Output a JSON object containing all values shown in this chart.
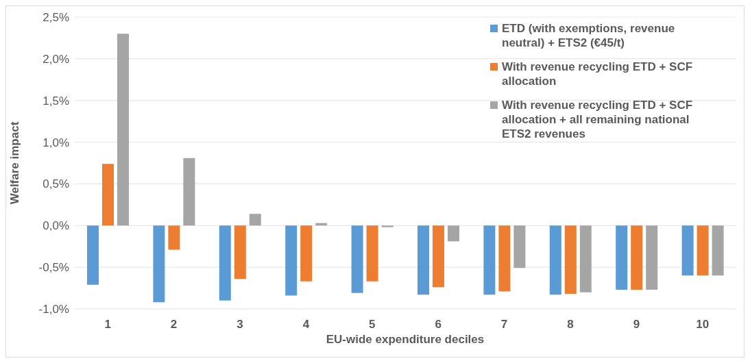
{
  "chart_data": {
    "type": "bar",
    "xlabel": "EU-wide expenditure deciles",
    "ylabel": "Welfare impact",
    "categories": [
      "1",
      "2",
      "3",
      "4",
      "5",
      "6",
      "7",
      "8",
      "9",
      "10"
    ],
    "series": [
      {
        "name": "ETD (with exemptions, revenue neutral) + ETS2 (€45/t)",
        "color": "#5b9bd5",
        "values": [
          -0.71,
          -0.92,
          -0.9,
          -0.84,
          -0.81,
          -0.83,
          -0.83,
          -0.83,
          -0.77,
          -0.6
        ]
      },
      {
        "name": "With revenue recycling ETD + SCF allocation",
        "color": "#ed7d31",
        "values": [
          0.74,
          -0.29,
          -0.64,
          -0.67,
          -0.67,
          -0.74,
          -0.79,
          -0.82,
          -0.77,
          -0.6
        ]
      },
      {
        "name": "With revenue recycling ETD + SCF allocation + all remaining national ETS2 revenues",
        "color": "#a5a5a5",
        "values": [
          2.3,
          0.81,
          0.14,
          0.03,
          -0.02,
          -0.19,
          -0.51,
          -0.8,
          -0.77,
          -0.6
        ]
      }
    ],
    "ylim": [
      -1,
      2.5
    ],
    "yticks": [
      {
        "value": -1,
        "label": "-1,0%"
      },
      {
        "value": -0.5,
        "label": "-0,5%"
      },
      {
        "value": 0,
        "label": "0,0%"
      },
      {
        "value": 0.5,
        "label": "0,5%"
      },
      {
        "value": 1,
        "label": "1,0%"
      },
      {
        "value": 1.5,
        "label": "1,5%"
      },
      {
        "value": 2,
        "label": "2,0%"
      },
      {
        "value": 2.5,
        "label": "2,5%"
      }
    ],
    "grid": "y",
    "legend": "top right"
  }
}
